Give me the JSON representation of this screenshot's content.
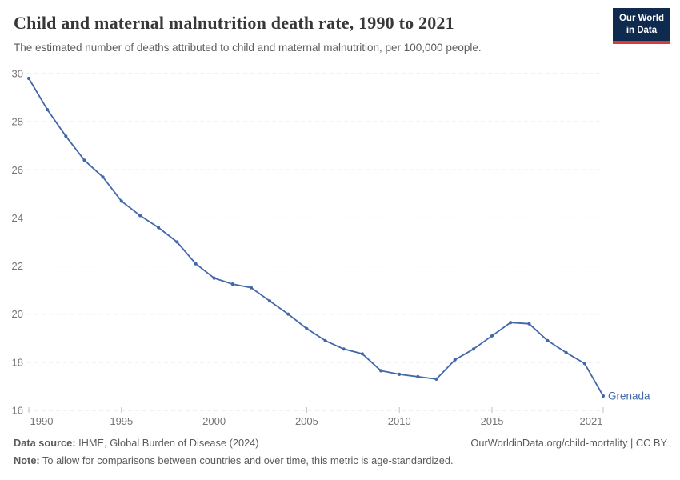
{
  "header": {
    "title": "Child and maternal malnutrition death rate, 1990 to 2021",
    "subtitle": "The estimated number of deaths attributed to child and maternal malnutrition, per 100,000 people."
  },
  "logo": {
    "line1": "Our World",
    "line2": "in Data",
    "bg_color": "#0e2a4e",
    "accent_color": "#d93b36"
  },
  "chart_data": {
    "type": "line",
    "title": "Child and maternal malnutrition death rate, 1990 to 2021",
    "xlabel": "",
    "ylabel": "",
    "x": [
      1990,
      1991,
      1992,
      1993,
      1994,
      1995,
      1996,
      1997,
      1998,
      1999,
      2000,
      2001,
      2002,
      2003,
      2004,
      2005,
      2006,
      2007,
      2008,
      2009,
      2010,
      2011,
      2012,
      2013,
      2014,
      2015,
      2016,
      2017,
      2018,
      2019,
      2020,
      2021
    ],
    "series": [
      {
        "name": "Grenada",
        "values": [
          29.8,
          28.5,
          27.4,
          26.4,
          25.7,
          24.7,
          24.1,
          23.6,
          23.0,
          22.1,
          21.5,
          21.25,
          21.1,
          20.55,
          20.0,
          19.4,
          18.9,
          18.55,
          18.35,
          17.65,
          17.5,
          17.4,
          17.3,
          18.1,
          18.55,
          19.1,
          19.65,
          19.6,
          18.9,
          18.4,
          17.95,
          16.6
        ]
      }
    ],
    "xlim": [
      1990,
      2021
    ],
    "ylim": [
      16,
      30
    ],
    "xticks": [
      1990,
      1995,
      2000,
      2005,
      2010,
      2015,
      2021
    ],
    "yticks": [
      16,
      18,
      20,
      22,
      24,
      26,
      28,
      30
    ],
    "grid": "dashed-horizontal",
    "legend_position": "end-of-line-label",
    "line_color": "#4268ab",
    "grid_color": "#e0e0e0",
    "tick_label_color": "#757575"
  },
  "footer": {
    "source_label": "Data source:",
    "source_text": " IHME, Global Burden of Disease (2024)",
    "link": "OurWorldinData.org/child-mortality | CC BY",
    "note_label": "Note:",
    "note_text": " To allow for comparisons between countries and over time, this metric is age-standardized."
  }
}
